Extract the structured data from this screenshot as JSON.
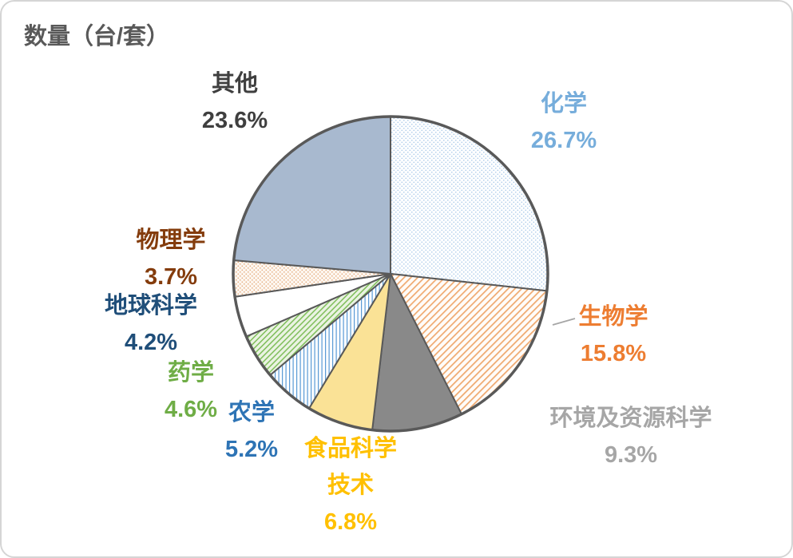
{
  "title": {
    "text": "数量（台/套）",
    "color": "#595959"
  },
  "chart_data": {
    "type": "pie",
    "title": "数量（台/套）",
    "unit": "台/套",
    "direction": "clockwise",
    "start_angle": "12 o'clock",
    "stroke_color": "#595959",
    "legend_position": "none",
    "labels_position": "outside",
    "slices": [
      {
        "id": "chemistry",
        "label": "化学",
        "value": 26.7,
        "pct_label": "26.7%",
        "fill": "dots-blue",
        "label_color": "#76ADDB"
      },
      {
        "id": "biology",
        "label": "生物学",
        "value": 15.8,
        "pct_label": "15.8%",
        "fill": "hatch-orange",
        "label_color": "#ED7D31"
      },
      {
        "id": "env-resource-science",
        "label": "环境及资源科学",
        "value": 9.3,
        "pct_label": "9.3%",
        "fill": "#898989",
        "label_color": "#A6A6A6"
      },
      {
        "id": "food-science-tech",
        "label": "食品科学技术",
        "label_lines": [
          "食品科学",
          "技术"
        ],
        "value": 6.8,
        "pct_label": "6.8%",
        "fill": "#FAE296",
        "label_color": "#FFC000"
      },
      {
        "id": "agronomy",
        "label": "农学",
        "value": 5.2,
        "pct_label": "5.2%",
        "fill": "vlines-blue",
        "label_color": "#2E74B5"
      },
      {
        "id": "pharmacy",
        "label": "药学",
        "value": 4.6,
        "pct_label": "4.6%",
        "fill": "hatch-green",
        "label_color": "#6FAD46"
      },
      {
        "id": "earth-science",
        "label": "地球科学",
        "value": 4.2,
        "pct_label": "4.2%",
        "fill": "#FFFFFF",
        "label_color": "#1F4E79"
      },
      {
        "id": "physics",
        "label": "物理学",
        "value": 3.7,
        "pct_label": "3.7%",
        "fill": "dots-tan",
        "label_color": "#843C0C"
      },
      {
        "id": "other",
        "label": "其他",
        "value": 23.6,
        "pct_label": "23.6%",
        "fill": "#A8B9CF",
        "label_color": "#3F3F3F"
      }
    ]
  }
}
